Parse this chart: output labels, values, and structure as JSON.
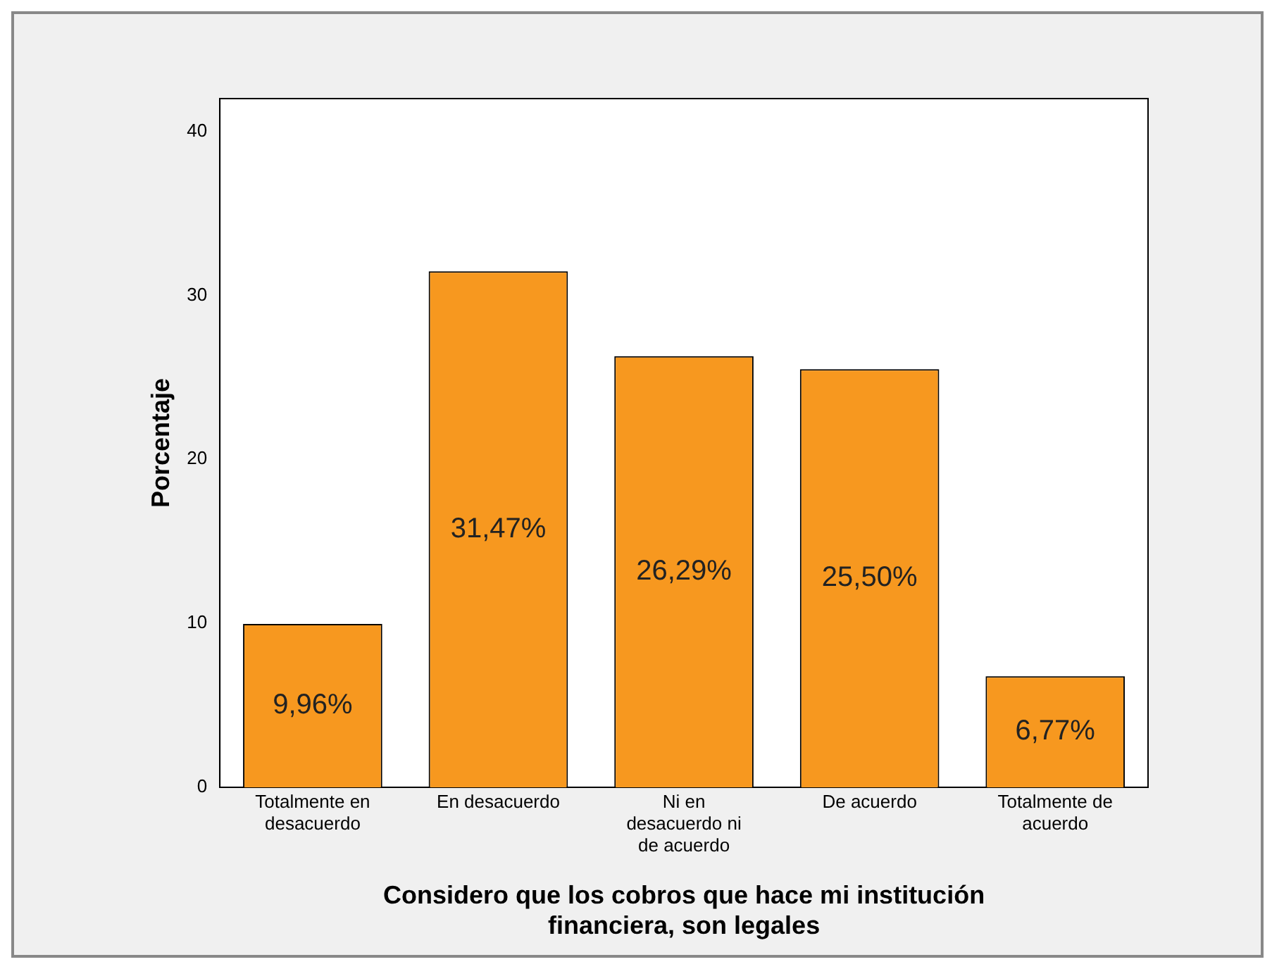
{
  "chart_data": {
    "type": "bar",
    "xlabel": "Considero que los cobros que hace mi institución financiera, son legales",
    "ylabel": "Porcentaje",
    "categories": [
      "Totalmente en desacuerdo",
      "En desacuerdo",
      "Ni en desacuerdo ni de acuerdo",
      "De acuerdo",
      "Totalmente de acuerdo"
    ],
    "values": [
      9.96,
      31.47,
      26.29,
      25.5,
      6.77
    ],
    "value_labels": [
      "9,96%",
      "31,47%",
      "26,29%",
      "25,50%",
      "6,77%"
    ],
    "color": "#f7981f",
    "ylim": [
      0,
      42
    ],
    "yticks": [
      0,
      10,
      20,
      30,
      40
    ],
    "grid": false,
    "legend": false
  }
}
